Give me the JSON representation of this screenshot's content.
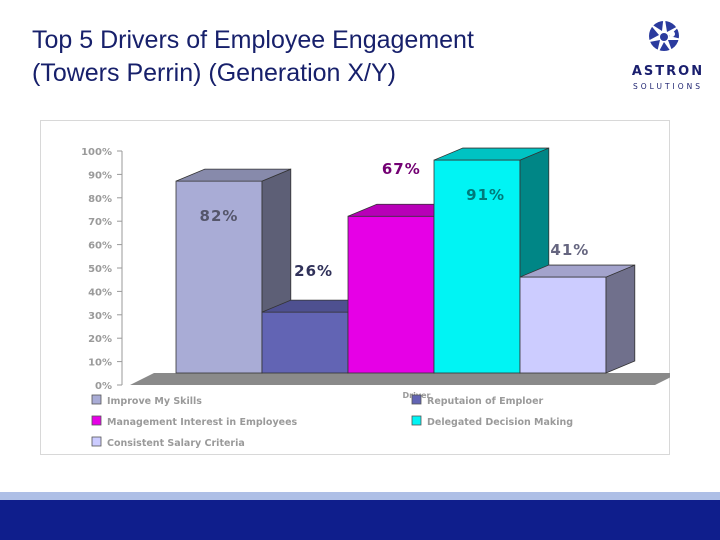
{
  "title": {
    "line1": "Top 5 Drivers of Employee Engagement",
    "line2": "(Towers Perrin) (Generation X/Y)"
  },
  "logo": {
    "word": "ASTRON",
    "sub": "SOLUTIONS",
    "icon": "star-burst-icon",
    "color": "#2b3b9e"
  },
  "chart_data": {
    "type": "bar",
    "style": "3d-clustered",
    "xlabel": "Driver",
    "ylabel": "",
    "ylim": [
      0,
      100
    ],
    "yticks": [
      "0%",
      "10%",
      "20%",
      "30%",
      "40%",
      "50%",
      "60%",
      "70%",
      "80%",
      "90%",
      "100%"
    ],
    "grid": false,
    "legend_position": "bottom",
    "series": [
      {
        "name": "Improve My Skills",
        "value": 82,
        "label": "82%",
        "color": "#a9acd6"
      },
      {
        "name": "Reputaion of Emploer",
        "value": 26,
        "label": "26%",
        "color": "#6264b4"
      },
      {
        "name": "Management Interest in Employees",
        "value": 67,
        "label": "67%",
        "color": "#e600e6"
      },
      {
        "name": "Delegated Decision Making",
        "value": 91,
        "label": "91%",
        "color": "#00f4f4"
      },
      {
        "name": "Consistent Salary Criteria",
        "value": 41,
        "label": "41%",
        "color": "#ccccff"
      }
    ]
  }
}
